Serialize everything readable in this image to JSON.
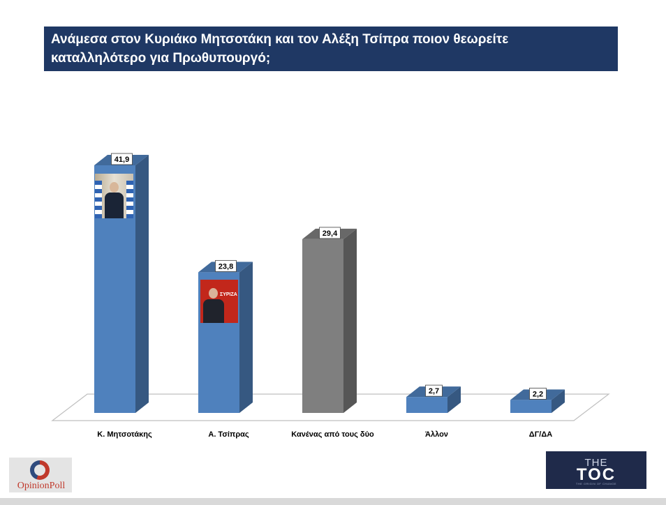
{
  "title": {
    "line1": "Ανάμεσα στον Κυριάκο Μητσοτάκη και τον Αλέξη Τσίπρα ποιον θεωρείτε",
    "line2": "καταλληλότερο για Πρωθυπουργό;"
  },
  "chart_data": {
    "type": "bar",
    "title": "Ανάμεσα στον Κυριάκο Μητσοτάκη και τον Αλέξη Τσίπρα ποιον θεωρείτε καταλληλότερο για Πρωθυπουργό;",
    "categories": [
      "Κ. Μητσοτάκης",
      "Α. Τσίπρας",
      "Κανένας από τους δύο",
      "Άλλον",
      "ΔΓ/ΔΑ"
    ],
    "values": [
      41.9,
      23.8,
      29.4,
      2.7,
      2.2
    ],
    "data_labels": [
      "41,9",
      "23,8",
      "29,4",
      "2,7",
      "2,2"
    ],
    "bar_colors": [
      "#4f81bd",
      "#4f81bd",
      "#7f7f7f",
      "#4f81bd",
      "#4f81bd"
    ],
    "style": "3d-column",
    "grid": false,
    "legend": "none",
    "xlabel": "",
    "ylabel": ""
  },
  "logos": {
    "left": {
      "text": "OpinionPoll"
    },
    "right": {
      "top": "THE",
      "main": "TOC",
      "sub": "THE ORIGIN OF CHANGE"
    }
  },
  "colors": {
    "title_bg": "#1f3864",
    "title_text": "#ffffff",
    "bar_blue": "#4f81bd",
    "bar_gray": "#7f7f7f"
  }
}
